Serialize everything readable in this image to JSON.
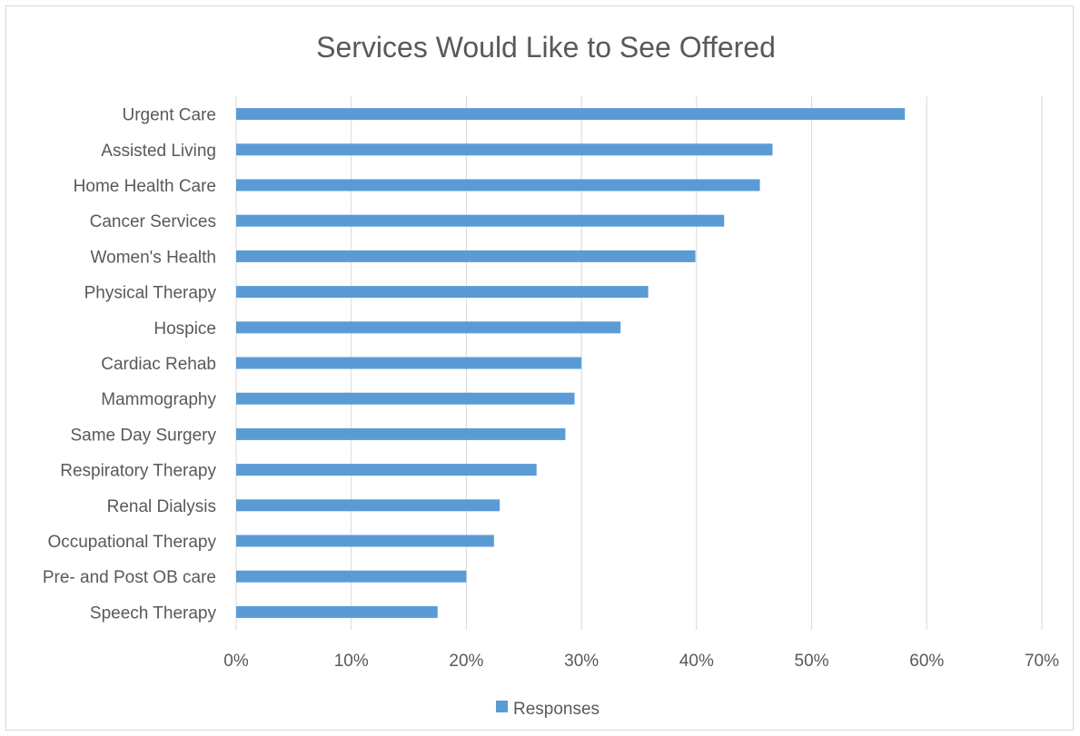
{
  "chart_data": {
    "type": "bar",
    "orientation": "horizontal",
    "title": "Services Would Like to See Offered",
    "categories": [
      "Urgent Care",
      "Assisted Living",
      "Home Health Care",
      "Cancer Services",
      "Women's Health",
      "Physical Therapy",
      "Hospice",
      "Cardiac Rehab",
      "Mammography",
      "Same Day Surgery",
      "Respiratory Therapy",
      "Renal Dialysis",
      "Occupational Therapy",
      "Pre- and Post OB care",
      "Speech Therapy"
    ],
    "series": [
      {
        "name": "Responses",
        "values": [
          58.1,
          46.6,
          45.5,
          42.4,
          39.9,
          35.8,
          33.4,
          30.0,
          29.4,
          28.6,
          26.1,
          22.9,
          22.4,
          20.0,
          17.5
        ],
        "color": "#5b9bd5"
      }
    ],
    "x_ticks": [
      "0%",
      "10%",
      "20%",
      "30%",
      "40%",
      "50%",
      "60%",
      "70%"
    ],
    "xlim": [
      0,
      70
    ],
    "value_unit": "percent",
    "grid": "vertical",
    "legend_position": "bottom"
  },
  "colors": {
    "bar": "#5b9bd5",
    "gridline": "#d9d9d9",
    "text": "#595959",
    "border": "#d9d9d9"
  }
}
